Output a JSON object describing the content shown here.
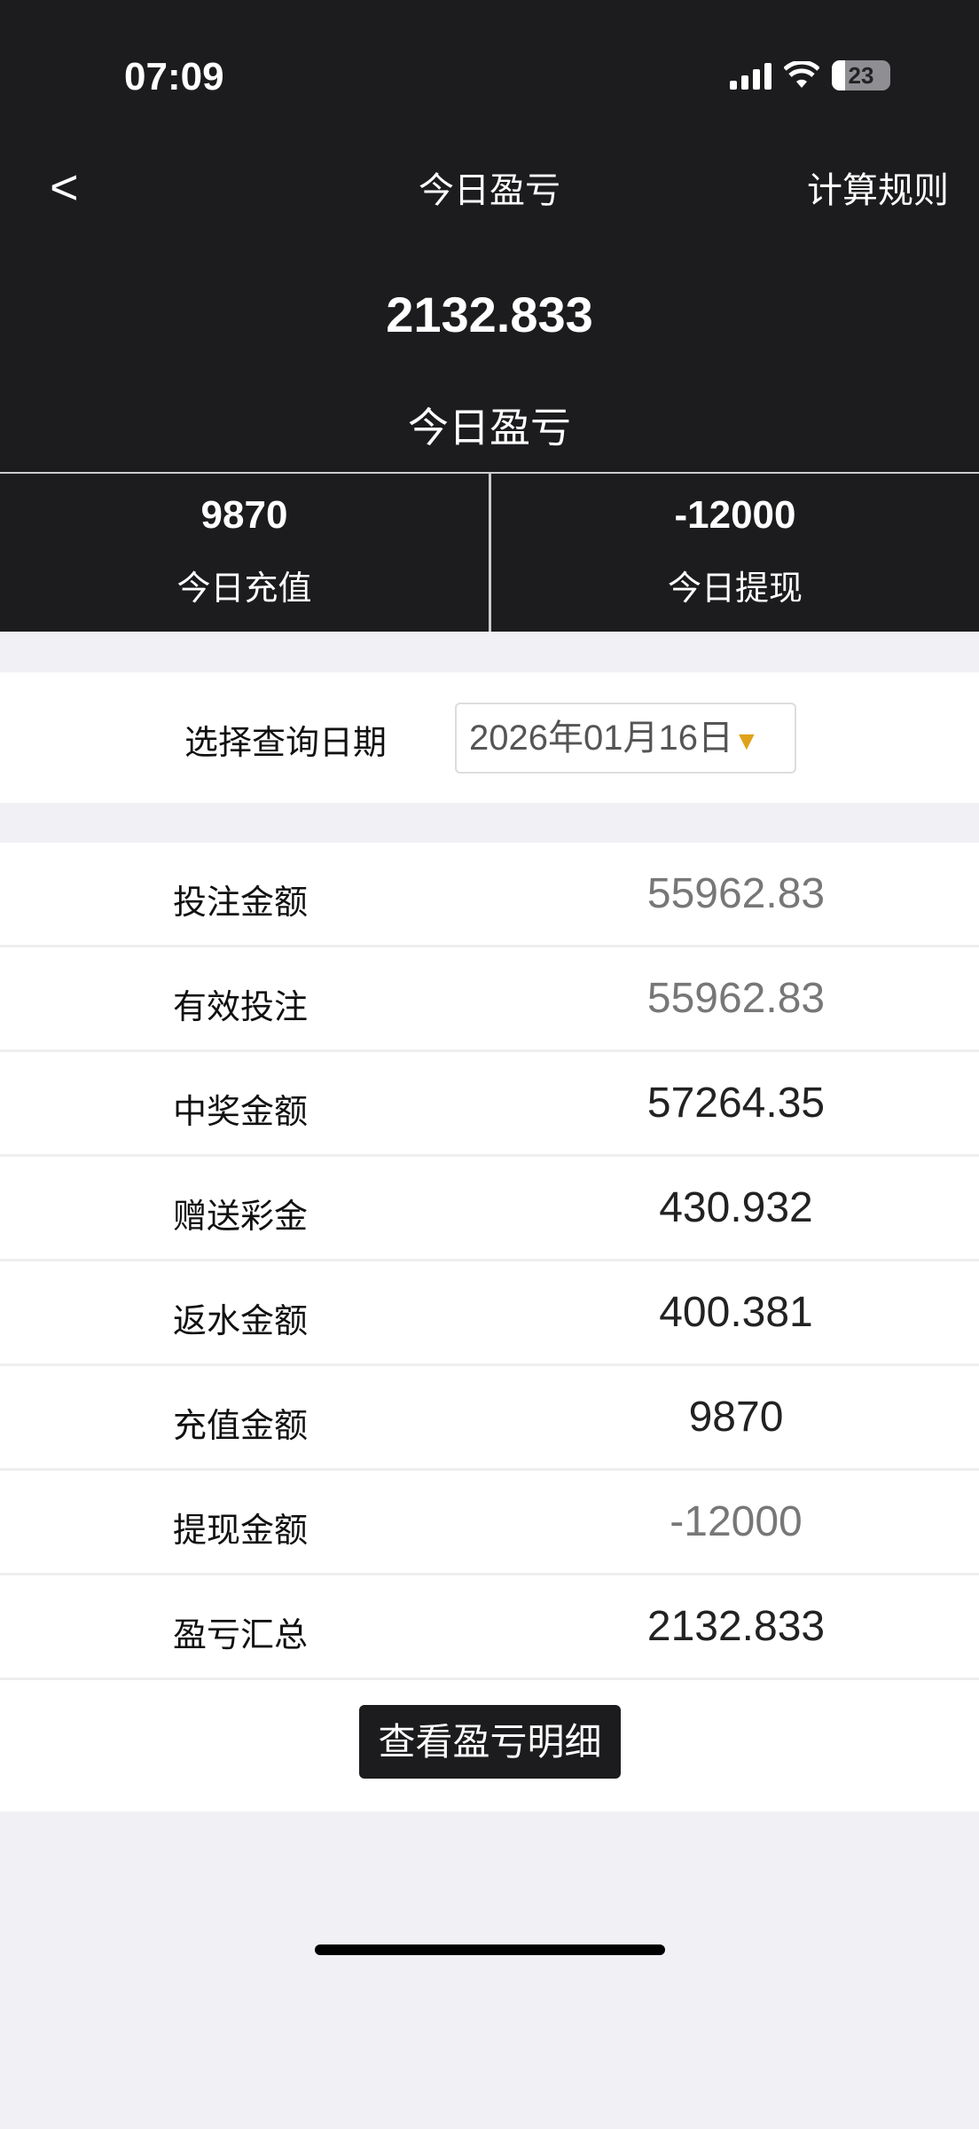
{
  "status_bar": {
    "time": "07:09",
    "battery": "23"
  },
  "nav": {
    "back_icon": "chevron-left-icon",
    "title": "今日盈亏",
    "rules_label": "计算规则"
  },
  "summary": {
    "value": "2132.833",
    "label": "今日盈亏"
  },
  "stats": [
    {
      "value": "9870",
      "label": "今日充值"
    },
    {
      "value": "-12000",
      "label": "今日提现"
    }
  ],
  "date_filter": {
    "label": "选择查询日期",
    "value": "2026年01月16日",
    "arrow_color": "#e0a21a"
  },
  "rows": [
    {
      "label": "投注金额",
      "value": "55962.83"
    },
    {
      "label": "有效投注",
      "value": "55962.83"
    },
    {
      "label": "中奖金额",
      "value": "57264.35"
    },
    {
      "label": "赠送彩金",
      "value": "430.932"
    },
    {
      "label": "返水金额",
      "value": "400.381"
    },
    {
      "label": "充值金额",
      "value": "9870"
    },
    {
      "label": "提现金额",
      "value": "-12000"
    },
    {
      "label": "盈亏汇总",
      "value": "2132.833"
    }
  ],
  "detail_button": "查看盈亏明细"
}
